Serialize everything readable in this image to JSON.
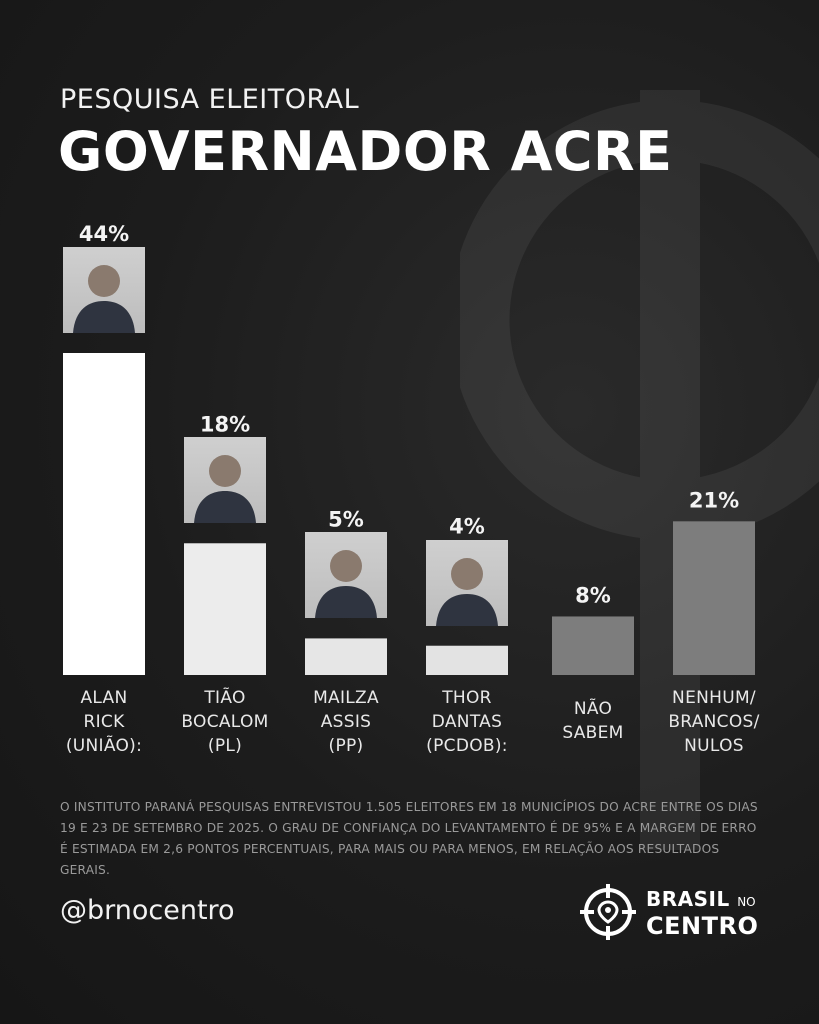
{
  "header": {
    "subtitle": "PESQUISA ELEITORAL",
    "title": "GOVERNADOR ACRE"
  },
  "chart_data": {
    "type": "bar",
    "categories": [
      [
        "ALAN",
        "RICK",
        "(UNIÃO):"
      ],
      [
        "TIÃO",
        "BOCALOM",
        "(PL)"
      ],
      [
        "MAILZA",
        "ASSIS",
        "(PP)"
      ],
      [
        "THOR",
        "DANTAS",
        "(PCDOB):"
      ],
      [
        "NÃO",
        "SABEM"
      ],
      [
        "NENHUM/",
        "BRANCOS/",
        "NULOS"
      ]
    ],
    "values": [
      44,
      18,
      5,
      4,
      8,
      21
    ],
    "value_labels": [
      "44%",
      "18%",
      "5%",
      "4%",
      "8%",
      "21%"
    ],
    "bar_colors": [
      "#ffffff",
      "#ececec",
      "#e6e6e6",
      "#e3e3e3",
      "#7d7d7d",
      "#7d7d7d"
    ],
    "has_photo": [
      true,
      true,
      true,
      true,
      false,
      false
    ],
    "ylim": [
      0,
      44
    ],
    "grid": false,
    "legend": "none"
  },
  "footer": {
    "note": "O INSTITUTO PARANÁ PESQUISAS ENTREVISTOU 1.505 ELEITORES EM 18 MUNICÍPIOS DO ACRE ENTRE OS DIAS 19 E 23 DE SETEMBRO DE 2025. O GRAU DE CONFIANÇA DO LEVANTAMENTO É DE 95% E A MARGEM DE ERRO É ESTIMADA EM 2,6 PONTOS PERCENTUAIS, PARA MAIS OU PARA MENOS, EM RELAÇÃO AOS RESULTADOS GERAIS.",
    "handle": "@brnocentro",
    "brand_line1": "BRASIL",
    "brand_no": "NO",
    "brand_line2": "CENTRO"
  }
}
